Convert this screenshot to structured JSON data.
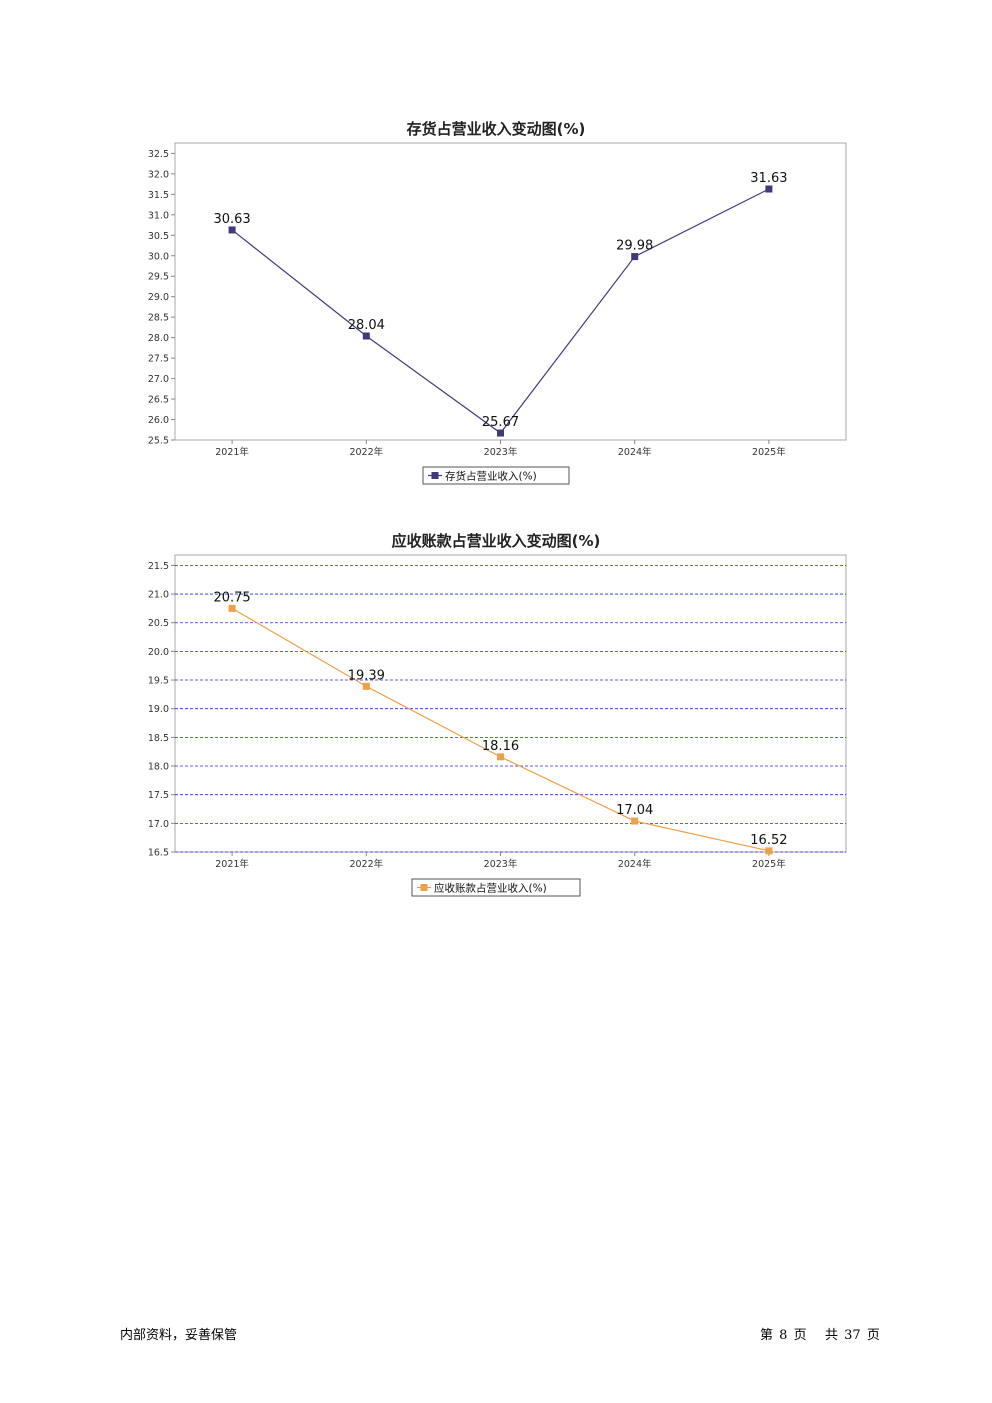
{
  "chart_data": [
    {
      "type": "line",
      "title": "存货占营业收入变动图(%)",
      "categories": [
        "2021年",
        "2022年",
        "2023年",
        "2024年",
        "2025年"
      ],
      "series": [
        {
          "name": "存货占营业收入(%)",
          "values": [
            30.63,
            28.04,
            25.67,
            29.98,
            31.63
          ],
          "color": "#3d3a7e"
        }
      ],
      "yticks": [
        "25.5",
        "26.0",
        "26.5",
        "27.0",
        "27.5",
        "28.0",
        "28.5",
        "29.0",
        "29.5",
        "30.0",
        "30.5",
        "31.0",
        "31.5",
        "32.0",
        "32.5"
      ],
      "ylim": [
        25.5,
        32.5
      ],
      "grid": false,
      "legend": "bottom-center",
      "data_labels": true
    },
    {
      "type": "line",
      "title": "应收账款占营业收入变动图(%)",
      "categories": [
        "2021年",
        "2022年",
        "2023年",
        "2024年",
        "2025年"
      ],
      "series": [
        {
          "name": "应收账款占营业收入(%)",
          "values": [
            20.75,
            19.39,
            18.16,
            17.04,
            16.52
          ],
          "color": "#f0a04a"
        }
      ],
      "yticks": [
        "16.5",
        "17.0",
        "17.5",
        "18.0",
        "18.5",
        "19.0",
        "19.5",
        "20.0",
        "20.5",
        "21.0",
        "21.5"
      ],
      "ylim": [
        16.5,
        21.5
      ],
      "grid": true,
      "grid_color": "#2b2bd0",
      "legend": "bottom-center",
      "data_labels": true
    }
  ],
  "footer": {
    "left": "内部资料，妥善保管",
    "page_prefix": "第",
    "page_number": "8",
    "page_suffix": "页",
    "total_prefix": "共",
    "total_pages": "37",
    "total_suffix": "页"
  }
}
